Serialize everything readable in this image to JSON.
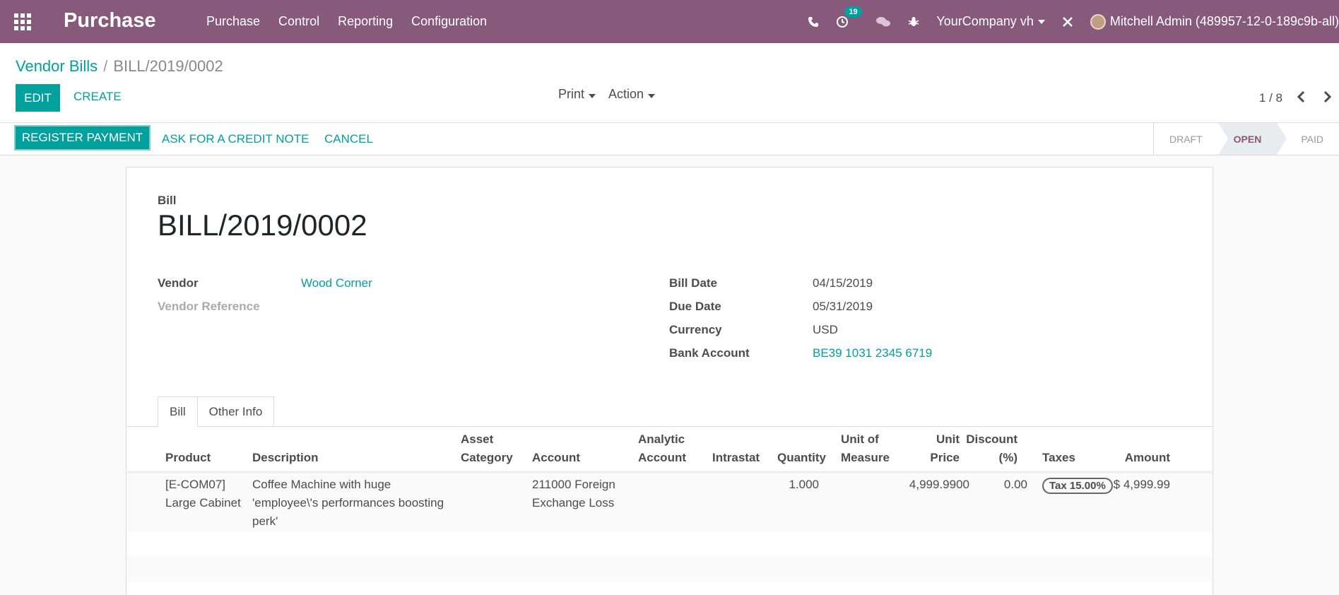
{
  "navbar": {
    "brand": "Purchase",
    "menu": [
      "Purchase",
      "Control",
      "Reporting",
      "Configuration"
    ],
    "activity_count": "19",
    "company": "YourCompany vh",
    "user": "Mitchell Admin (489957-12-0-189c9b-all)"
  },
  "breadcrumb": {
    "parent": "Vendor Bills",
    "separator": "/",
    "current": "BILL/2019/0002"
  },
  "buttons": {
    "edit": "Edit",
    "create": "Create",
    "print": "Print",
    "action": "Action",
    "register_payment": "Register Payment",
    "credit_note": "Ask for a Credit Note",
    "cancel": "Cancel"
  },
  "pager": {
    "value": "1 / 8"
  },
  "stages": {
    "draft": "Draft",
    "open": "Open",
    "paid": "Paid"
  },
  "document": {
    "label": "Bill",
    "title": "BILL/2019/0002",
    "vendor_label": "Vendor",
    "vendor": "Wood Corner",
    "vendor_ref_label": "Vendor Reference",
    "bill_date_label": "Bill Date",
    "bill_date": "04/15/2019",
    "due_date_label": "Due Date",
    "due_date": "05/31/2019",
    "currency_label": "Currency",
    "currency": "USD",
    "bank_label": "Bank Account",
    "bank": "BE39 1031 2345 6719"
  },
  "tabs": [
    "Bill",
    "Other Info"
  ],
  "table": {
    "headers": {
      "product": "Product",
      "description": "Description",
      "asset_category_1": "Asset",
      "asset_category_2": "Category",
      "account": "Account",
      "analytic_1": "Analytic",
      "analytic_2": "Account",
      "intrastat": "Intrastat",
      "quantity": "Quantity",
      "uom_1": "Unit of",
      "uom_2": "Measure",
      "unit_price_1": "Unit",
      "unit_price_2": "Price",
      "discount_1": "Discount",
      "discount_2": "(%)",
      "taxes": "Taxes",
      "amount": "Amount"
    },
    "rows": [
      {
        "product_1": "[E-COM07]",
        "product_2": "Large Cabinet",
        "desc_1": "Coffee Machine with huge",
        "desc_2": "'employee\\'s performances boosting",
        "desc_3": "perk'",
        "account_1": "211000 Foreign",
        "account_2": "Exchange Loss",
        "quantity": "1.000",
        "unit_price": "4,999.9900",
        "discount": "0.00",
        "tax": "Tax 15.00%",
        "amount": "$ 4,999.99"
      }
    ]
  }
}
